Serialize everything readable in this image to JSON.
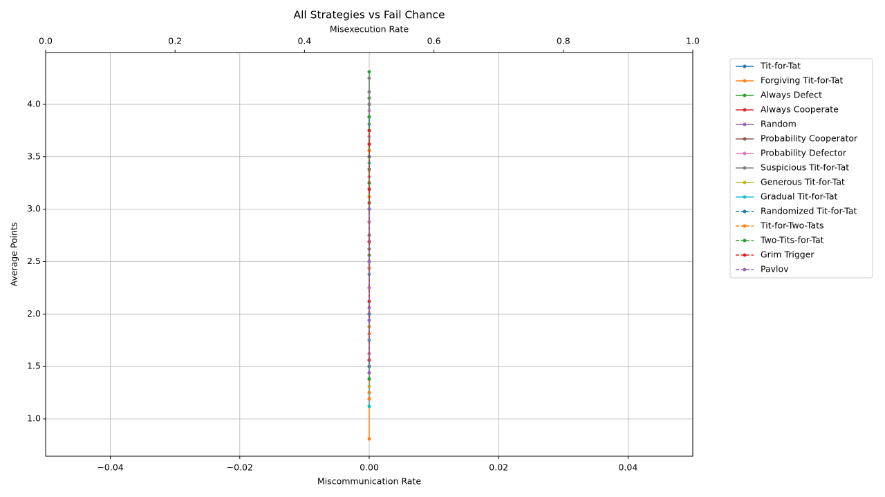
{
  "chart_data": {
    "type": "line",
    "title": "All Strategies vs Fail Chance",
    "x_label": "Miscommunication Rate",
    "x2_label": "Misexecution Rate",
    "y_label": "Average Points",
    "xlim": [
      -0.05,
      0.05
    ],
    "xticks": [
      {
        "value": -0.04,
        "label": "−0.04"
      },
      {
        "value": -0.02,
        "label": "−0.02"
      },
      {
        "value": 0,
        "label": "0.00"
      },
      0.02,
      0.04
    ],
    "x2lim": [
      0,
      1
    ],
    "x2ticks": [
      {
        "value": 0,
        "label": "0.0"
      },
      0.2,
      0.4,
      0.6,
      0.8,
      {
        "value": 1,
        "label": "1.0"
      }
    ],
    "ylim": [
      0.644,
      4.494
    ],
    "yticks": [
      {
        "value": 1,
        "label": "1.0"
      },
      1.5,
      {
        "value": 2,
        "label": "2.0"
      },
      2.5,
      {
        "value": 3,
        "label": "3.0"
      },
      3.5,
      {
        "value": 4,
        "label": "4.0"
      }
    ],
    "grid": true,
    "legend": "outside right",
    "series": [
      {
        "name": "Tit-for-Tat",
        "color": "#1f77b4",
        "linestyle": "solid",
        "x": [
          0,
          0,
          0,
          0,
          0,
          0,
          0,
          0
        ],
        "values": [
          1.44,
          1.88,
          2.25,
          2.62,
          3.0,
          3.38,
          3.75,
          4.0
        ]
      },
      {
        "name": "Forgiving Tit-for-Tat",
        "color": "#ff7f0e",
        "linestyle": "solid",
        "x": [
          0,
          0,
          0,
          0,
          0,
          0,
          0,
          0
        ],
        "values": [
          0.81,
          1.19,
          1.25,
          1.62,
          2.12,
          2.62,
          3.06,
          3.56
        ]
      },
      {
        "name": "Always Defect",
        "color": "#2ca02c",
        "linestyle": "solid",
        "x": [
          0,
          0,
          0,
          0,
          0,
          0,
          0,
          0
        ],
        "values": [
          1.38,
          1.62,
          2.0,
          2.5,
          3.25,
          3.88,
          4.06,
          4.31
        ]
      },
      {
        "name": "Always Cooperate",
        "color": "#d62728",
        "linestyle": "solid",
        "x": [
          0,
          0,
          0,
          0,
          0,
          0,
          0
        ],
        "values": [
          1.56,
          2.0,
          2.44,
          2.88,
          3.19,
          3.5,
          3.75
        ]
      },
      {
        "name": "Random",
        "color": "#9467bd",
        "linestyle": "solid",
        "x": [
          0,
          0,
          0,
          0,
          0,
          0
        ],
        "values": [
          1.44,
          1.75,
          2.06,
          2.38,
          2.69,
          3.0
        ]
      },
      {
        "name": "Probability Cooperator",
        "color": "#8c564b",
        "linestyle": "solid",
        "x": [
          0,
          0,
          0,
          0,
          0,
          0
        ],
        "values": [
          1.5,
          2.12,
          2.75,
          3.06,
          3.38,
          3.62
        ]
      },
      {
        "name": "Probability Defector",
        "color": "#e377c2",
        "linestyle": "solid",
        "x": [
          0,
          0,
          0,
          0,
          0,
          0
        ],
        "values": [
          1.62,
          2.25,
          2.88,
          3.31,
          3.69,
          3.94
        ]
      },
      {
        "name": "Suspicious Tit-for-Tat",
        "color": "#7f7f7f",
        "linestyle": "solid",
        "x": [
          0,
          0,
          0,
          0,
          0,
          0,
          0,
          0
        ],
        "values": [
          1.38,
          2.0,
          2.62,
          3.25,
          3.81,
          4.0,
          4.12,
          4.25
        ]
      },
      {
        "name": "Generous Tit-for-Tat",
        "color": "#bcbd22",
        "linestyle": "solid",
        "x": [
          0,
          0,
          0,
          0,
          0
        ],
        "values": [
          1.31,
          1.88,
          2.5,
          3.12,
          3.5
        ]
      },
      {
        "name": "Gradual Tit-for-Tat",
        "color": "#17becf",
        "linestyle": "solid",
        "x": [
          0,
          0,
          0,
          0,
          0
        ],
        "values": [
          1.12,
          1.75,
          2.38,
          3.0,
          3.44
        ]
      },
      {
        "name": "Randomized Tit-for-Tat",
        "color": "#1f77b4",
        "linestyle": "dashed",
        "x": [
          0,
          0,
          0,
          0,
          0,
          0
        ],
        "values": [
          1.5,
          2.0,
          2.5,
          3.0,
          3.5,
          3.88
        ]
      },
      {
        "name": "Tit-for-Two-Tats",
        "color": "#ff7f0e",
        "linestyle": "dashed",
        "x": [
          0,
          0,
          0,
          0,
          0
        ],
        "values": [
          1.19,
          1.81,
          2.44,
          3.12,
          3.56
        ]
      },
      {
        "name": "Two-Tits-for-Tat",
        "color": "#2ca02c",
        "linestyle": "dashed",
        "x": [
          0,
          0,
          0,
          0,
          0
        ],
        "values": [
          1.38,
          1.94,
          2.56,
          3.25,
          3.88
        ]
      },
      {
        "name": "Grim Trigger",
        "color": "#d62728",
        "linestyle": "dashed",
        "x": [
          0,
          0,
          0,
          0,
          0,
          0
        ],
        "values": [
          1.56,
          2.12,
          2.69,
          3.19,
          3.62,
          3.75
        ]
      },
      {
        "name": "Pavlov",
        "color": "#9467bd",
        "linestyle": "dashed",
        "x": [
          0,
          0,
          0,
          0
        ],
        "values": [
          1.44,
          1.94,
          2.5,
          3.0
        ]
      }
    ]
  }
}
